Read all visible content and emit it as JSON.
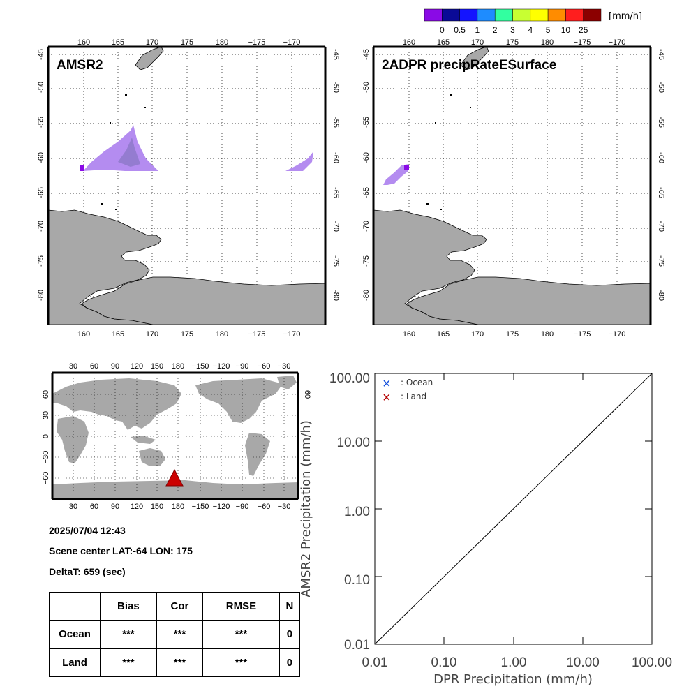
{
  "colorbar": {
    "unit": "[mm/h]",
    "ticks": [
      "0",
      "0.5",
      "1",
      "2",
      "3",
      "4",
      "5",
      "10",
      "25"
    ],
    "colors": [
      "#8a0ae6",
      "#0a0a96",
      "#1414ff",
      "#1e8cff",
      "#32ffa0",
      "#c8ff32",
      "#ffff00",
      "#ff8c00",
      "#ff1e1e",
      "#8c0000"
    ]
  },
  "map_left": {
    "title": "AMSR2",
    "lon_ticks": [
      "160",
      "165",
      "170",
      "175",
      "180",
      "−175",
      "−170"
    ],
    "lat_ticks": [
      "-45",
      "-50",
      "-55",
      "-60",
      "-65",
      "-70",
      "-75",
      "-80"
    ]
  },
  "map_right": {
    "title": "2ADPR precipRateESurface",
    "lon_ticks": [
      "160",
      "165",
      "170",
      "175",
      "180",
      "−175",
      "−170"
    ],
    "lat_ticks": [
      "-45",
      "-50",
      "-55",
      "-60",
      "-65",
      "-70",
      "-75",
      "-80"
    ]
  },
  "world_map": {
    "lon_ticks": [
      "30",
      "60",
      "90",
      "120",
      "150",
      "180",
      "−150",
      "−120",
      "−90",
      "−60",
      "−30"
    ],
    "lat_ticks": [
      "60",
      "30",
      "0",
      "−30",
      "−60"
    ],
    "marker_color": "#cc0000"
  },
  "info": {
    "datetime": "2025/07/04 12:43",
    "scene_center": "Scene center LAT:-64   LON: 175",
    "delta_t": "DeltaT:  659 (sec)"
  },
  "stats_table": {
    "headers": [
      "",
      "Bias",
      "Cor",
      "RMSE",
      "N"
    ],
    "rows": [
      {
        "label": "Ocean",
        "bias": "***",
        "cor": "***",
        "rmse": "***",
        "n": "0"
      },
      {
        "label": "Land",
        "bias": "***",
        "cor": "***",
        "rmse": "***",
        "n": "0"
      }
    ]
  },
  "scatter": {
    "xlabel": "DPR Precipitation (mm/h)",
    "ylabel": "AMSR2 Precipitation (mm/h)",
    "x_ticks": [
      "0.01",
      "0.10",
      "1.00",
      "10.00",
      "100.00"
    ],
    "y_ticks": [
      "100.00",
      "10.00",
      "1.00",
      "0.10",
      "0.01"
    ],
    "legend": [
      {
        "marker": "×",
        "label": ": Ocean",
        "color": "#1450dc"
      },
      {
        "marker": "×",
        "label": ": Land",
        "color": "#b40000"
      }
    ]
  },
  "chart_data": {
    "type": "scatter",
    "xlabel": "DPR Precipitation (mm/h)",
    "ylabel": "AMSR2 Precipitation (mm/h)",
    "xscale": "log",
    "yscale": "log",
    "xlim": [
      0.01,
      100
    ],
    "ylim": [
      0.01,
      100
    ],
    "series": [
      {
        "name": "Ocean",
        "x": [],
        "y": []
      },
      {
        "name": "Land",
        "x": [],
        "y": []
      }
    ],
    "reference_line": "1:1"
  }
}
